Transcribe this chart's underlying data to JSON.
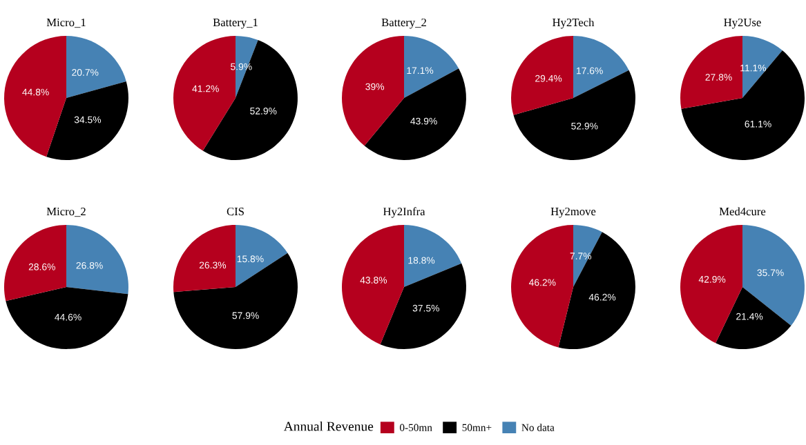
{
  "chart_data": [
    {
      "type": "pie",
      "title": "Micro_1",
      "categories": [
        "0-50mn",
        "50mn+",
        "No data"
      ],
      "values": [
        44.8,
        34.5,
        20.7
      ],
      "value_labels": [
        "44.8%",
        "34.5%",
        "20.7%"
      ],
      "colors": [
        "#b5001e",
        "#000000",
        "#4682b4"
      ],
      "legend": "bottom",
      "legend_title": "Annual Revenue"
    },
    {
      "type": "pie",
      "title": "Battery_1",
      "values": [
        41.2,
        52.9,
        5.9
      ],
      "value_labels": [
        "41.2%",
        "52.9%",
        "5.9%"
      ],
      "colors": [
        "#b5001e",
        "#000000",
        "#4682b4"
      ]
    },
    {
      "type": "pie",
      "title": "Battery_2",
      "values": [
        39,
        43.9,
        17.1
      ],
      "value_labels": [
        "39%",
        "43.9%",
        "17.1%"
      ],
      "colors": [
        "#b5001e",
        "#000000",
        "#4682b4"
      ]
    },
    {
      "type": "pie",
      "title": "Hy2Tech",
      "values": [
        29.4,
        52.9,
        17.6
      ],
      "value_labels": [
        "29.4%",
        "52.9%",
        "17.6%"
      ],
      "colors": [
        "#b5001e",
        "#000000",
        "#4682b4"
      ]
    },
    {
      "type": "pie",
      "title": "Hy2Use",
      "values": [
        27.8,
        61.1,
        11.1
      ],
      "value_labels": [
        "27.8%",
        "61.1%",
        "11.1%"
      ],
      "colors": [
        "#b5001e",
        "#000000",
        "#4682b4"
      ]
    },
    {
      "type": "pie",
      "title": "Micro_2",
      "values": [
        28.6,
        44.6,
        26.8
      ],
      "value_labels": [
        "28.6%",
        "44.6%",
        "26.8%"
      ],
      "colors": [
        "#b5001e",
        "#000000",
        "#4682b4"
      ]
    },
    {
      "type": "pie",
      "title": "CIS",
      "values": [
        26.3,
        57.9,
        15.8
      ],
      "value_labels": [
        "26.3%",
        "57.9%",
        "15.8%"
      ],
      "colors": [
        "#b5001e",
        "#000000",
        "#4682b4"
      ]
    },
    {
      "type": "pie",
      "title": "Hy2Infra",
      "values": [
        43.8,
        37.5,
        18.8
      ],
      "value_labels": [
        "43.8%",
        "37.5%",
        "18.8%"
      ],
      "colors": [
        "#b5001e",
        "#000000",
        "#4682b4"
      ]
    },
    {
      "type": "pie",
      "title": "Hy2move",
      "values": [
        46.2,
        46.2,
        7.7
      ],
      "value_labels": [
        "46.2%",
        "46.2%",
        "7.7%"
      ],
      "colors": [
        "#b5001e",
        "#000000",
        "#4682b4"
      ]
    },
    {
      "type": "pie",
      "title": "Med4cure",
      "values": [
        42.9,
        21.4,
        35.7
      ],
      "value_labels": [
        "42.9%",
        "21.4%",
        "35.7%"
      ],
      "colors": [
        "#b5001e",
        "#000000",
        "#4682b4"
      ]
    }
  ]
}
